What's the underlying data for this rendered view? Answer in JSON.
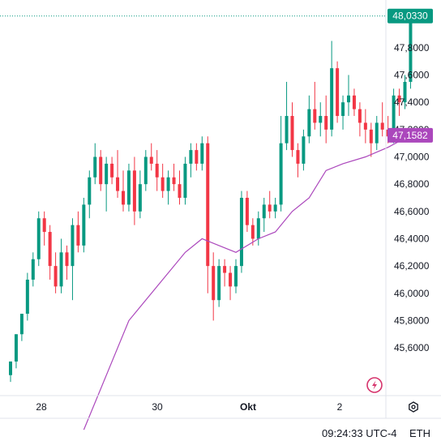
{
  "chart_data": {
    "type": "candlestick",
    "y_ticks": [
      "47,8000",
      "47,6000",
      "47,4000",
      "47,2000",
      "47,0000",
      "46,8000",
      "46,6000",
      "46,4000",
      "46,2000",
      "46,0000",
      "45,8000",
      "45,6000"
    ],
    "y_tick_values": [
      47.8,
      47.6,
      47.4,
      47.2,
      47.0,
      46.8,
      46.6,
      46.4,
      46.2,
      46.0,
      45.8,
      45.6
    ],
    "x_ticks": [
      "28",
      "30",
      "Okt",
      "2"
    ],
    "ylim": [
      45.25,
      48.15
    ],
    "last_price_label": "48,0330",
    "last_price": 48.033,
    "ma_label": "47,1582",
    "ma_value": 47.1582,
    "up_color": "#089981",
    "down_color": "#f23645",
    "ma_color": "#ab47bc",
    "grid": false,
    "candles": [
      [
        45.4,
        45.5,
        45.35,
        45.5
      ],
      [
        45.5,
        45.7,
        45.45,
        45.7
      ],
      [
        45.7,
        45.85,
        45.65,
        45.85
      ],
      [
        45.85,
        46.15,
        45.8,
        46.1
      ],
      [
        46.1,
        46.3,
        46.05,
        46.25
      ],
      [
        46.25,
        46.6,
        46.2,
        46.55
      ],
      [
        46.55,
        46.6,
        46.35,
        46.45
      ],
      [
        46.45,
        46.5,
        46.1,
        46.2
      ],
      [
        46.2,
        46.3,
        46.0,
        46.05
      ],
      [
        46.05,
        46.4,
        46.0,
        46.3
      ],
      [
        46.3,
        46.35,
        46.1,
        46.2
      ],
      [
        46.2,
        46.55,
        45.95,
        46.5
      ],
      [
        46.5,
        46.6,
        46.3,
        46.35
      ],
      [
        46.35,
        46.7,
        46.3,
        46.65
      ],
      [
        46.65,
        46.9,
        46.55,
        46.85
      ],
      [
        46.85,
        47.1,
        46.8,
        47.0
      ],
      [
        47.0,
        47.05,
        46.75,
        46.8
      ],
      [
        46.8,
        47.0,
        46.6,
        46.95
      ],
      [
        46.95,
        47.0,
        46.8,
        46.85
      ],
      [
        46.85,
        47.05,
        46.7,
        46.75
      ],
      [
        46.75,
        46.9,
        46.6,
        46.65
      ],
      [
        46.65,
        46.95,
        46.6,
        46.9
      ],
      [
        46.9,
        47.0,
        46.5,
        46.6
      ],
      [
        46.6,
        46.9,
        46.55,
        46.8
      ],
      [
        46.8,
        47.05,
        46.75,
        47.0
      ],
      [
        47.0,
        47.1,
        46.9,
        46.95
      ],
      [
        46.95,
        47.05,
        46.75,
        46.85
      ],
      [
        46.85,
        46.95,
        46.7,
        46.75
      ],
      [
        46.75,
        46.9,
        46.65,
        46.85
      ],
      [
        46.85,
        46.95,
        46.75,
        46.8
      ],
      [
        46.8,
        46.9,
        46.65,
        46.7
      ],
      [
        46.7,
        47.0,
        46.65,
        46.95
      ],
      [
        46.95,
        47.1,
        46.85,
        47.05
      ],
      [
        47.05,
        47.1,
        46.9,
        46.95
      ],
      [
        46.95,
        47.15,
        46.9,
        47.1
      ],
      [
        47.1,
        47.15,
        46.0,
        46.2
      ],
      [
        46.2,
        46.3,
        45.8,
        45.95
      ],
      [
        45.95,
        46.25,
        45.9,
        46.2
      ],
      [
        46.2,
        46.25,
        46.05,
        46.15
      ],
      [
        46.15,
        46.2,
        45.95,
        46.05
      ],
      [
        46.05,
        46.25,
        46.0,
        46.2
      ],
      [
        46.2,
        46.75,
        46.15,
        46.7
      ],
      [
        46.7,
        46.75,
        46.45,
        46.5
      ],
      [
        46.5,
        46.55,
        46.35,
        46.4
      ],
      [
        46.4,
        46.6,
        46.35,
        46.55
      ],
      [
        46.55,
        46.7,
        46.45,
        46.65
      ],
      [
        46.65,
        46.75,
        46.55,
        46.6
      ],
      [
        46.6,
        46.7,
        46.55,
        46.65
      ],
      [
        46.65,
        47.3,
        46.6,
        47.1
      ],
      [
        47.1,
        47.55,
        47.05,
        47.3
      ],
      [
        47.3,
        47.4,
        47.0,
        47.05
      ],
      [
        47.05,
        47.1,
        46.85,
        46.95
      ],
      [
        46.95,
        47.2,
        46.9,
        47.15
      ],
      [
        47.15,
        47.45,
        47.1,
        47.35
      ],
      [
        47.35,
        47.55,
        47.2,
        47.25
      ],
      [
        47.25,
        47.4,
        47.15,
        47.3
      ],
      [
        47.3,
        47.45,
        47.1,
        47.2
      ],
      [
        47.2,
        47.85,
        47.15,
        47.65
      ],
      [
        47.65,
        47.7,
        47.25,
        47.3
      ],
      [
        47.3,
        47.45,
        47.2,
        47.4
      ],
      [
        47.4,
        47.6,
        47.3,
        47.45
      ],
      [
        47.45,
        47.5,
        47.3,
        47.35
      ],
      [
        47.35,
        47.4,
        47.15,
        47.25
      ],
      [
        47.25,
        47.35,
        47.1,
        47.2
      ],
      [
        47.2,
        47.25,
        47.0,
        47.1
      ],
      [
        47.1,
        47.3,
        47.05,
        47.25
      ],
      [
        47.25,
        47.4,
        47.15,
        47.2
      ],
      [
        47.2,
        47.3,
        47.1,
        47.15
      ],
      [
        47.15,
        47.5,
        47.1,
        47.45
      ],
      [
        47.45,
        47.5,
        47.3,
        47.4
      ],
      [
        47.4,
        47.6,
        47.35,
        47.55
      ],
      [
        47.55,
        48.033,
        47.5,
        48.033
      ]
    ],
    "ma": [
      [
        13,
        45.0
      ],
      [
        17,
        45.4
      ],
      [
        21,
        45.8
      ],
      [
        26,
        46.05
      ],
      [
        31,
        46.3
      ],
      [
        34,
        46.4
      ],
      [
        37,
        46.35
      ],
      [
        40,
        46.3
      ],
      [
        44,
        46.4
      ],
      [
        47,
        46.45
      ],
      [
        50,
        46.6
      ],
      [
        53,
        46.7
      ],
      [
        56,
        46.9
      ],
      [
        59,
        46.95
      ],
      [
        63,
        47.0
      ],
      [
        67,
        47.07
      ],
      [
        71,
        47.1582
      ]
    ]
  },
  "footer": {
    "time": "09:24:33",
    "timezone": "UTC-4",
    "currency": "ETH"
  }
}
